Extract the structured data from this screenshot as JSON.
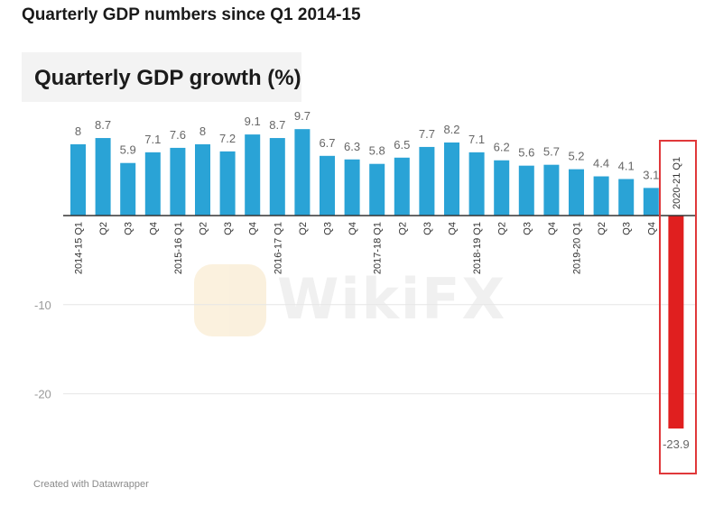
{
  "page": {
    "heading": "Quarterly GDP numbers since Q1 2014-15",
    "credit": "Created with Datawrapper",
    "watermark": "WikiFX"
  },
  "chart_data": {
    "type": "bar",
    "title": "Quarterly GDP growth (%)",
    "xlabel": "",
    "ylabel": "",
    "ylim": [
      -25,
      10
    ],
    "yticks": [
      -10,
      -20
    ],
    "grid": true,
    "categories": [
      "2014-15 Q1",
      "Q2",
      "Q3",
      "Q4",
      "2015-16 Q1",
      "Q2",
      "Q3",
      "Q4",
      "2016-17 Q1",
      "Q2",
      "Q3",
      "Q4",
      "2017-18 Q1",
      "Q2",
      "Q3",
      "Q4",
      "2018-19 Q1",
      "Q2",
      "Q3",
      "Q4",
      "2019-20 Q1",
      "Q2",
      "Q3",
      "Q4",
      "2020-21 Q1"
    ],
    "values": [
      8,
      8.7,
      5.9,
      7.1,
      7.6,
      8,
      7.2,
      9.1,
      8.7,
      9.7,
      6.7,
      6.3,
      5.8,
      6.5,
      7.7,
      8.2,
      7.1,
      6.2,
      5.6,
      5.7,
      5.2,
      4.4,
      4.1,
      3.1,
      -23.9
    ],
    "value_labels": [
      "8",
      "8.7",
      "5.9",
      "7.1",
      "7.6",
      "8",
      "7.2",
      "9.1",
      "8.7",
      "9.7",
      "6.7",
      "6.3",
      "5.8",
      "6.5",
      "7.7",
      "8.2",
      "7.1",
      "6.2",
      "5.6",
      "5.7",
      "5.2",
      "4.4",
      "4.1",
      "3.1",
      "-23.9"
    ],
    "colors": {
      "positive": "#2aa3d6",
      "negative": "#e01f1f",
      "highlight_box": "#e0383a",
      "grid": "#e6e6e6",
      "axis": "#333333",
      "label": "#666666"
    }
  }
}
